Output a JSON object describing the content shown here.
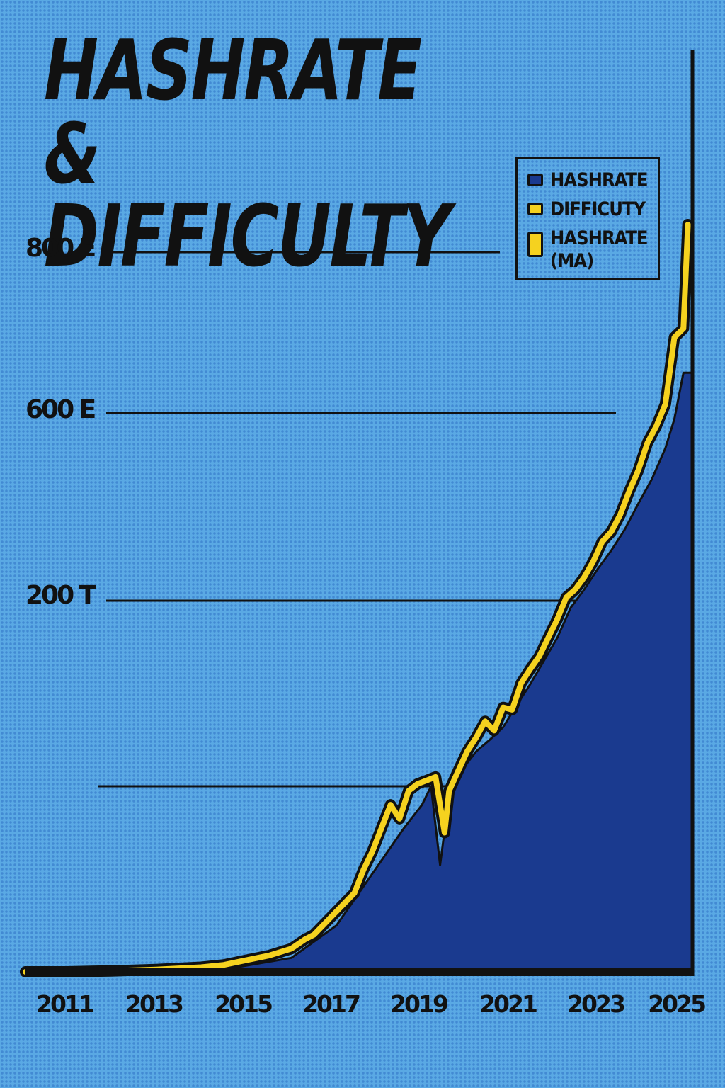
{
  "chart_data": {
    "type": "area",
    "title_lines": [
      "HASHRATE &",
      "DIFFICULTY"
    ],
    "xlabel": "",
    "ylabel": "",
    "x_tick_labels": [
      "2011",
      "2013",
      "2015",
      "2017",
      "2019",
      "2021",
      "2023",
      "2025"
    ],
    "y_tick_labels": [
      "800 E",
      "600 E",
      "200 T"
    ],
    "xlim": [
      2010.6,
      2025.4
    ],
    "grid": true,
    "legend_position": "top-right",
    "legend": [
      {
        "label": "HASHRATE",
        "color": "#1a3a8f"
      },
      {
        "label": "DIFFICUTY",
        "color": "#f5d21f"
      },
      {
        "label": "HASHRATE\n(MA)",
        "color": "#f5d21f"
      }
    ],
    "colors": {
      "hashrate_fill": "#1a3a8f",
      "difficulty_line": "#f5d21f",
      "outline": "#111111"
    },
    "series": [
      {
        "name": "DIFFICUTY",
        "x": [
          2010.6,
          2011.5,
          2012.5,
          2013.5,
          2014.5,
          2015.0,
          2015.5,
          2016.0,
          2016.5,
          2016.8,
          2017.0,
          2017.3,
          2017.6,
          2017.9,
          2018.1,
          2018.3,
          2018.5,
          2018.7,
          2018.9,
          2019.1,
          2019.3,
          2019.5,
          2019.7,
          2019.9,
          2020.0,
          2020.2,
          2020.4,
          2020.6,
          2020.8,
          2021.0,
          2021.2,
          2021.4,
          2021.6,
          2021.8,
          2022.0,
          2022.2,
          2022.4,
          2022.6,
          2022.8,
          2023.0,
          2023.2,
          2023.4,
          2023.6,
          2023.8,
          2024.0,
          2024.2,
          2024.4,
          2024.6,
          2024.8,
          2025.0,
          2025.2,
          2025.3
        ],
        "values": [
          0,
          0,
          0.2,
          0.5,
          1,
          1.5,
          2.5,
          3.5,
          5,
          7,
          8,
          11,
          14,
          17,
          22,
          26,
          31,
          36,
          33,
          39,
          42,
          45,
          48,
          30,
          39,
          53,
          70,
          82,
          96,
          88,
          108,
          106,
          129,
          141,
          152,
          168,
          184,
          207,
          224,
          250,
          284,
          326,
          347,
          384,
          434,
          478,
          536,
          572,
          611,
          694,
          705,
          825
        ]
      },
      {
        "name": "HASHRATE",
        "x": [
          2010.6,
          2013.0,
          2015.0,
          2016.5,
          2017.5,
          2018.0,
          2018.5,
          2019.0,
          2019.4,
          2019.6,
          2019.8,
          2020.0,
          2020.3,
          2020.6,
          2020.9,
          2021.2,
          2021.5,
          2021.8,
          2022.1,
          2022.4,
          2022.7,
          2023.0,
          2023.3,
          2023.6,
          2023.9,
          2024.2,
          2024.5,
          2024.8,
          2025.0,
          2025.2
        ],
        "values": [
          0,
          0,
          0.5,
          3,
          10,
          17,
          24,
          31,
          36,
          40,
          23,
          38,
          55,
          70,
          80,
          91,
          110,
          128,
          148,
          168,
          194,
          224,
          268,
          307,
          352,
          407,
          459,
          525,
          587,
          650
        ]
      }
    ]
  }
}
